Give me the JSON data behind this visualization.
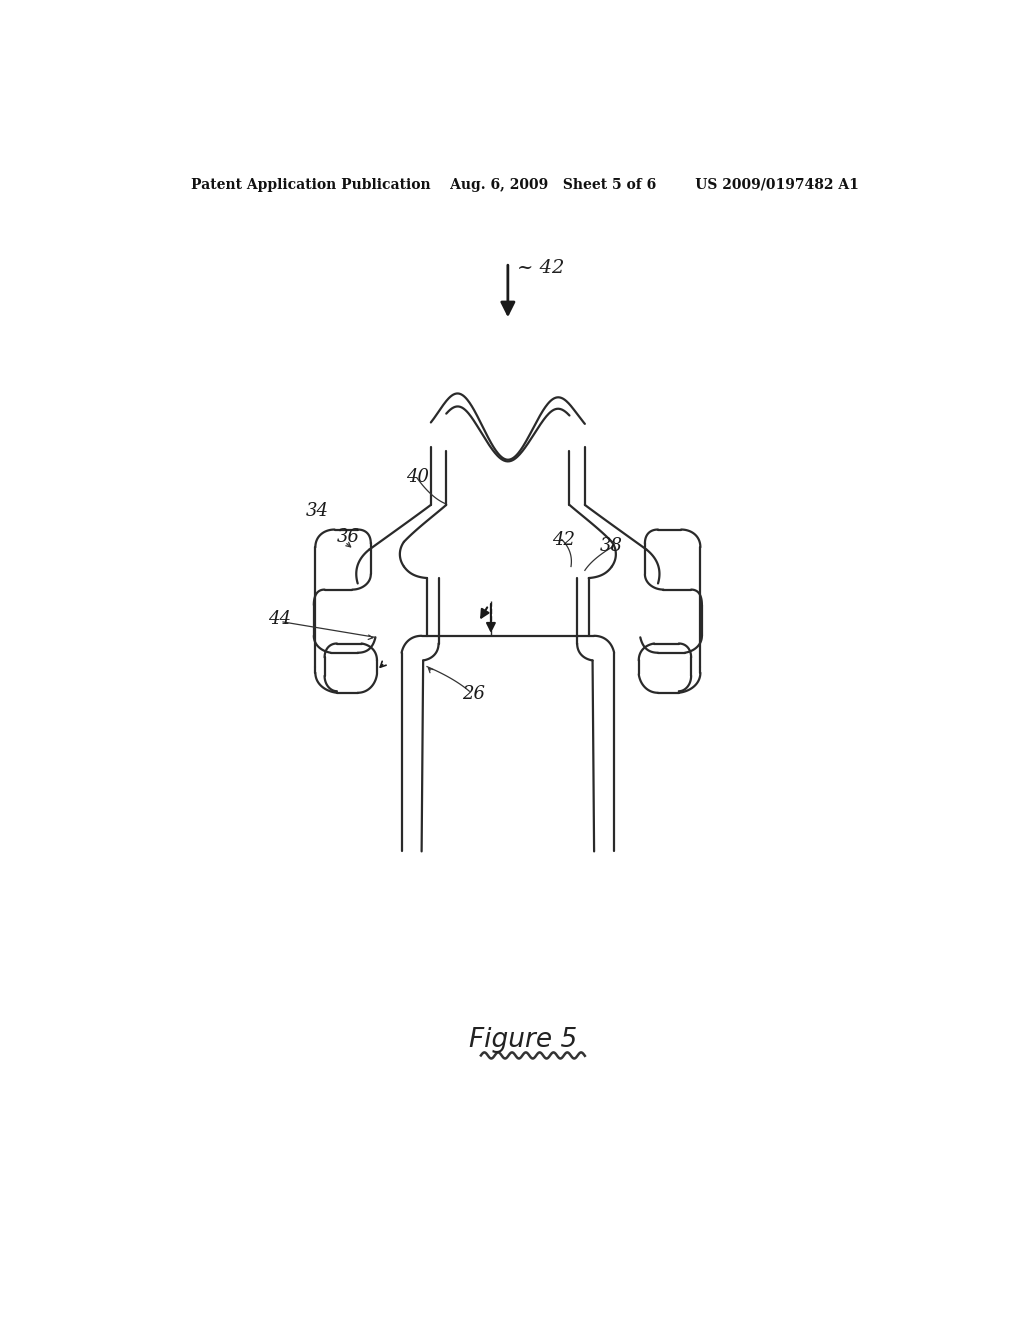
{
  "bg_color": "#ffffff",
  "header_text": "Patent Application Publication    Aug. 6, 2009   Sheet 5 of 6        US 2009/0197482 A1",
  "header_fontsize": 10,
  "figure_label": "Figure 5",
  "line_color": "#2a2a2a",
  "line_width": 1.6,
  "arrow_color": "#1a1a1a"
}
